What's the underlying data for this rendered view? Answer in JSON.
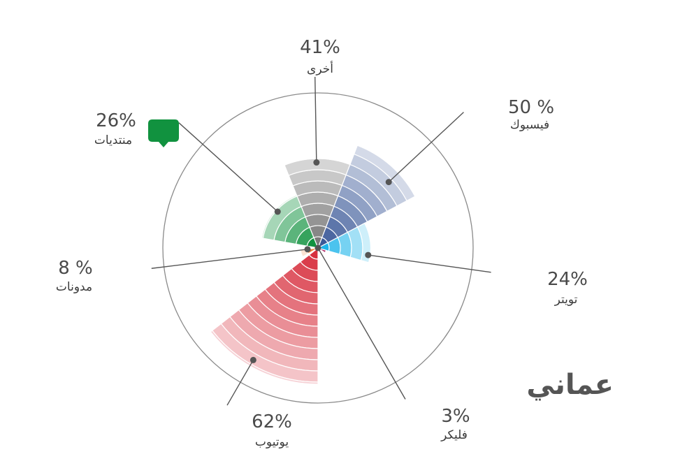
{
  "brand": "عماني",
  "chart_data": {
    "type": "polar-area",
    "max_value": 70,
    "colors": {
      "facebook": "#3b5998",
      "twitter": "#1fb5ea",
      "flickr": "#b0306a",
      "youtube": "#d7303e",
      "blogs": "#f07f36",
      "forums": "#11923f",
      "other": "#7a7a7a"
    },
    "series": [
      {
        "key": "other",
        "label": "أخرى",
        "percent_text": "41%",
        "value": 41
      },
      {
        "key": "facebook",
        "label": "فيسبوك",
        "percent_text": "50 %",
        "value": 50
      },
      {
        "key": "twitter",
        "label": "تويتر",
        "percent_text": "24%",
        "value": 24
      },
      {
        "key": "flickr",
        "label": "فليكر",
        "percent_text": "3%",
        "value": 3
      },
      {
        "key": "youtube",
        "label": "يوتيوب",
        "percent_text": "62%",
        "value": 62
      },
      {
        "key": "blogs",
        "label": "مدونات",
        "percent_text": "8 %",
        "value": 8
      },
      {
        "key": "forums",
        "label": "منتديات",
        "percent_text": "26%",
        "value": 26
      }
    ],
    "forum_icon": "speech-bubble-icon"
  }
}
